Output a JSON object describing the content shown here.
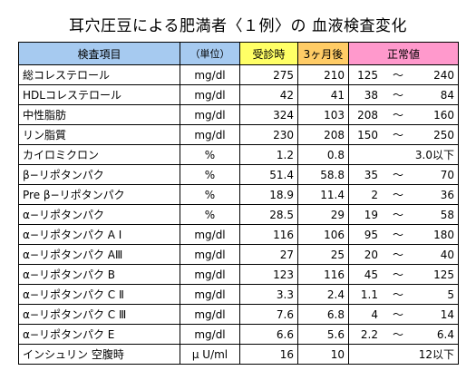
{
  "title": "耳穴圧豆による肥満者〈１例〉の 血液検査変化",
  "headers": {
    "item": "検査項目",
    "unit": "（単位）",
    "before": "受診時",
    "after": "3ヶ月後",
    "normal": "正常値"
  },
  "header_colors": {
    "item": "#a6caf0",
    "unit": "#a6caf0",
    "before": "#ffff66",
    "after": "#ffcc66",
    "normal": "#ff99cc"
  },
  "rows": [
    {
      "item": "総コレステロール",
      "unit": "mg/dl",
      "before": "275",
      "after": "210",
      "low": "125",
      "sep": "～",
      "high": "240"
    },
    {
      "item": "HDLコレステロール",
      "unit": "mg/dl",
      "before": "42",
      "after": "41",
      "low": "38",
      "sep": "～",
      "high": "84"
    },
    {
      "item": "中性脂肪",
      "unit": "mg/dl",
      "before": "324",
      "after": "103",
      "low": "208",
      "sep": "～",
      "high": "160"
    },
    {
      "item": "リン脂質",
      "unit": "mg/dl",
      "before": "230",
      "after": "208",
      "low": "150",
      "sep": "～",
      "high": "250"
    },
    {
      "item": "カイロミクロン",
      "unit": "%",
      "before": "1.2",
      "after": "0.8",
      "single": "3.0以下"
    },
    {
      "item": "β−リポタンパク",
      "unit": "%",
      "before": "51.4",
      "after": "58.8",
      "low": "35",
      "sep": "～",
      "high": "70"
    },
    {
      "item": "Pre β−リポタンパク",
      "unit": "%",
      "before": "18.9",
      "after": "11.4",
      "low": "2",
      "sep": "～",
      "high": "36"
    },
    {
      "item": "α−リポタンパク",
      "unit": "%",
      "before": "28.5",
      "after": "29",
      "low": "19",
      "sep": "～",
      "high": "58"
    },
    {
      "item": "α−リポタンパク A Ⅰ",
      "unit": "mg/dl",
      "before": "116",
      "after": "106",
      "low": "95",
      "sep": "～",
      "high": "180"
    },
    {
      "item": "α−リポタンパク AⅢ",
      "unit": "mg/dl",
      "before": "27",
      "after": "25",
      "low": "20",
      "sep": "～",
      "high": "40"
    },
    {
      "item": "α−リポタンパク B",
      "unit": "mg/dl",
      "before": "123",
      "after": "116",
      "low": "45",
      "sep": "～",
      "high": "125"
    },
    {
      "item": "α−リポタンパク C Ⅱ",
      "unit": "mg/dl",
      "before": "3.3",
      "after": "2.4",
      "low": "1.1",
      "sep": "～",
      "high": "5"
    },
    {
      "item": "α−リポタンパク C Ⅲ",
      "unit": "mg/dl",
      "before": "7.6",
      "after": "6.8",
      "low": "4",
      "sep": "～",
      "high": "14"
    },
    {
      "item": "α−リポタンパク E",
      "unit": "mg/dl",
      "before": "6.6",
      "after": "5.6",
      "low": "2.2",
      "sep": "～",
      "high": "6.4"
    },
    {
      "item": "インシュリン 空腹時",
      "unit": "μ U/ml",
      "before": "16",
      "after": "10",
      "single": "12以下"
    }
  ]
}
